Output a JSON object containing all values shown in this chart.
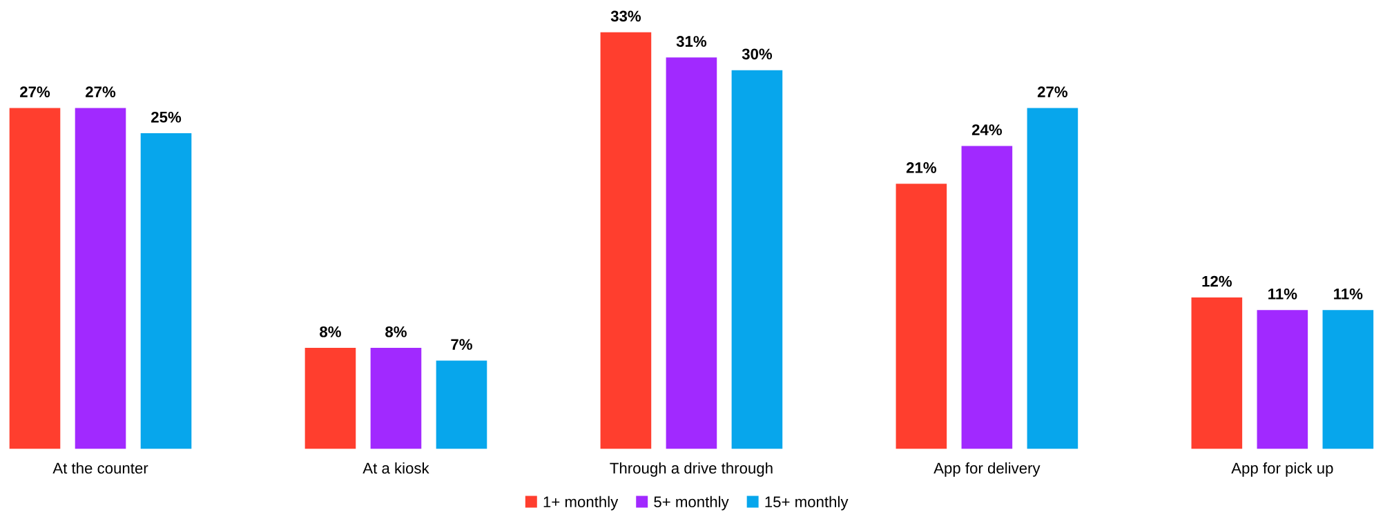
{
  "chart_data": {
    "type": "bar",
    "categories": [
      "At the counter",
      "At a kiosk",
      "Through a drive through",
      "App for delivery",
      "App for pick up"
    ],
    "series": [
      {
        "name": "1+ monthly",
        "color": "#ff3e2e",
        "values": [
          27,
          8,
          33,
          21,
          12
        ],
        "value_labels": [
          "27%",
          "8%",
          "33%",
          "21%",
          "12%"
        ]
      },
      {
        "name": "5+ monthly",
        "color": "#a129ff",
        "values": [
          27,
          8,
          31,
          24,
          11
        ],
        "value_labels": [
          "27%",
          "8%",
          "31%",
          "24%",
          "11%"
        ]
      },
      {
        "name": "15+ monthly",
        "color": "#07a6ec",
        "values": [
          25,
          7,
          30,
          27,
          11
        ],
        "value_labels": [
          "25%",
          "7%",
          "30%",
          "27%",
          "11%"
        ]
      }
    ],
    "legend": "bottom",
    "grid": false
  }
}
